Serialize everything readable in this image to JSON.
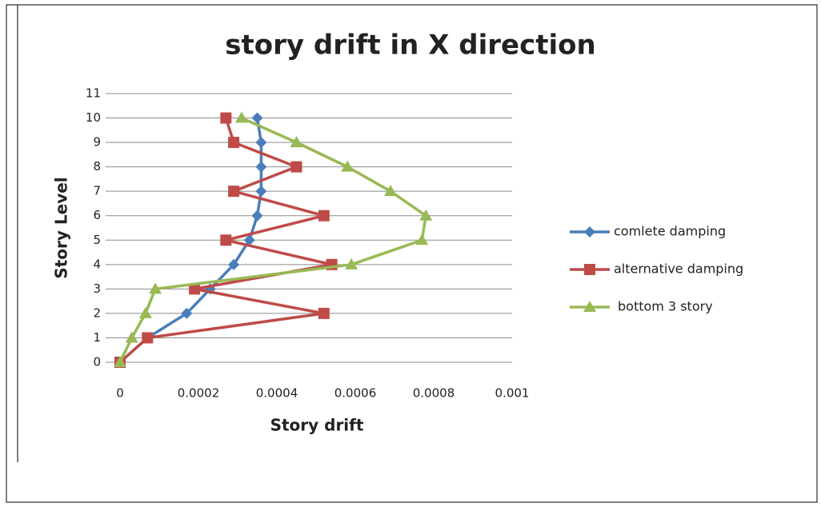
{
  "chart_data": {
    "type": "line",
    "title": "story drift in X direction",
    "x_label": "Story drift",
    "y_label": "Story Level",
    "xlim": [
      0,
      0.001
    ],
    "xticks": [
      0,
      0.0002,
      0.0004,
      0.0006,
      0.0008,
      0.001
    ],
    "ylim": [
      0,
      11
    ],
    "yticks": [
      0,
      1,
      2,
      3,
      4,
      5,
      6,
      7,
      8,
      9,
      10,
      11
    ],
    "grid": true,
    "legend": "right",
    "series": [
      {
        "name": "comlete damping",
        "color": "#4a7ebb",
        "marker": "diamond",
        "x": [
          0,
          7e-05,
          0.00017,
          0.00023,
          0.00029,
          0.00033,
          0.00035,
          0.00036,
          0.00036,
          0.00036,
          0.00035
        ],
        "values": [
          0,
          1,
          2,
          3,
          4,
          5,
          6,
          7,
          8,
          9,
          10
        ]
      },
      {
        "name": "alternative damping",
        "color": "#be4b48",
        "marker": "square",
        "x": [
          0,
          7e-05,
          0.00052,
          0.00019,
          0.00054,
          0.00027,
          0.00052,
          0.00029,
          0.00045,
          0.00029,
          0.00027
        ],
        "values": [
          0,
          1,
          2,
          3,
          4,
          5,
          6,
          7,
          8,
          9,
          10
        ]
      },
      {
        "name": "bottom 3 story",
        "color": "#98b954",
        "marker": "triangle",
        "x": [
          0,
          3e-05,
          6.5e-05,
          9e-05,
          0.00059,
          0.00077,
          0.00078,
          0.00069,
          0.00058,
          0.00045,
          0.00031
        ],
        "values": [
          0,
          1,
          2,
          3,
          4,
          5,
          6,
          7,
          8,
          9,
          10
        ]
      }
    ]
  }
}
